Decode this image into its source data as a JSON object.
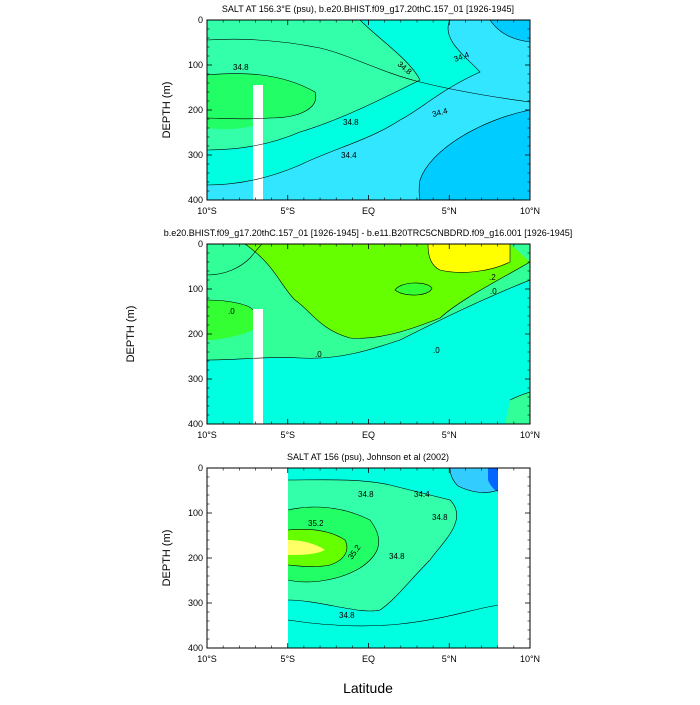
{
  "chart_data": [
    {
      "type": "contour",
      "title": "SALT AT 156.3°E (psu), b.e20.BHIST.f09_g17.20thC.157_01 [1926-1945]",
      "ylabel": "DEPTH (m)",
      "xlim": [
        -10,
        10
      ],
      "ylim": [
        400,
        0
      ],
      "xticks": [
        "10°S",
        "5°S",
        "EQ",
        "5°N",
        "10°N"
      ],
      "yticks": [
        "0",
        "100",
        "200",
        "300",
        "400"
      ],
      "contour_labels": [
        "34.8",
        "34.8",
        "34.4",
        "34.8",
        "34.4",
        "34.4"
      ]
    },
    {
      "type": "contour",
      "title": "b.e20.BHIST.f09_g17.20thC.157_01 [1926-1945] - b.e11.B20TRC5CNBDRD.f09_g16.001 [1926-1945]",
      "ylabel": "DEPTH (m)",
      "xlim": [
        -10,
        10
      ],
      "ylim": [
        400,
        0
      ],
      "xticks": [
        "10°S",
        "5°S",
        "EQ",
        "5°N",
        "10°N"
      ],
      "yticks": [
        "0",
        "100",
        "200",
        "300",
        "400"
      ],
      "contour_labels": [
        ".0",
        ".2",
        ".0",
        ".0",
        ".0"
      ]
    },
    {
      "type": "contour",
      "title": "SALT AT 156 (psu), Johnson et al (2002)",
      "ylabel": "DEPTH (m)",
      "xlabel": "Latitude",
      "xlim": [
        -10,
        10
      ],
      "ylim": [
        400,
        0
      ],
      "xticks": [
        "10°S",
        "5°S",
        "EQ",
        "5°N",
        "10°N"
      ],
      "yticks": [
        "0",
        "100",
        "200",
        "300",
        "400"
      ],
      "contour_labels": [
        "34.8",
        "34.4",
        "35.2",
        "34.8",
        "35.2",
        "34.8",
        "34.8"
      ]
    }
  ]
}
